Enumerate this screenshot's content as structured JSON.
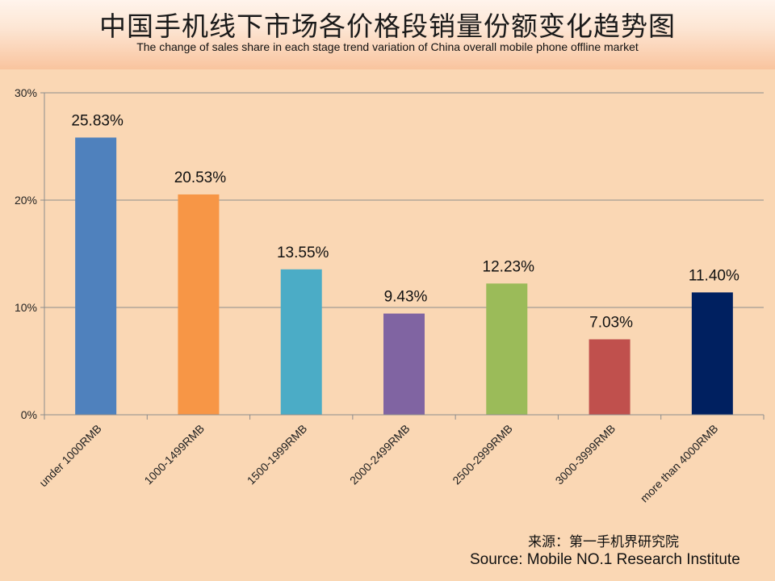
{
  "title": "中国手机线下市场各价格段销量份额变化趋势图",
  "subtitle": "The change of sales share in each stage trend variation of China overall mobile phone offline market",
  "source_cn": "来源：第一手机界研究院",
  "source_en": "Source: Mobile NO.1 Research Institute",
  "chart_data": {
    "type": "bar",
    "categories": [
      "under 1000RMB",
      "1000-1499RMB",
      "1500-1999RMB",
      "2000-2499RMB",
      "2500-2999RMB",
      "3000-3999RMB",
      "more than 4000RMB"
    ],
    "values": [
      25.83,
      20.53,
      13.55,
      9.43,
      12.23,
      7.03,
      11.4
    ],
    "data_labels": [
      "25.83%",
      "20.53%",
      "13.55%",
      "9.43%",
      "12.23%",
      "7.03%",
      "11.40%"
    ],
    "colors": [
      "#4f81bd",
      "#f79646",
      "#4bacc6",
      "#8064a2",
      "#9bbb59",
      "#c0504d",
      "#002060"
    ],
    "yticks": [
      0,
      10,
      20,
      30
    ],
    "ytick_labels": [
      "0%",
      "10%",
      "20%",
      "30%"
    ],
    "ylim": [
      0,
      30
    ],
    "grid": true,
    "legend": "none"
  }
}
